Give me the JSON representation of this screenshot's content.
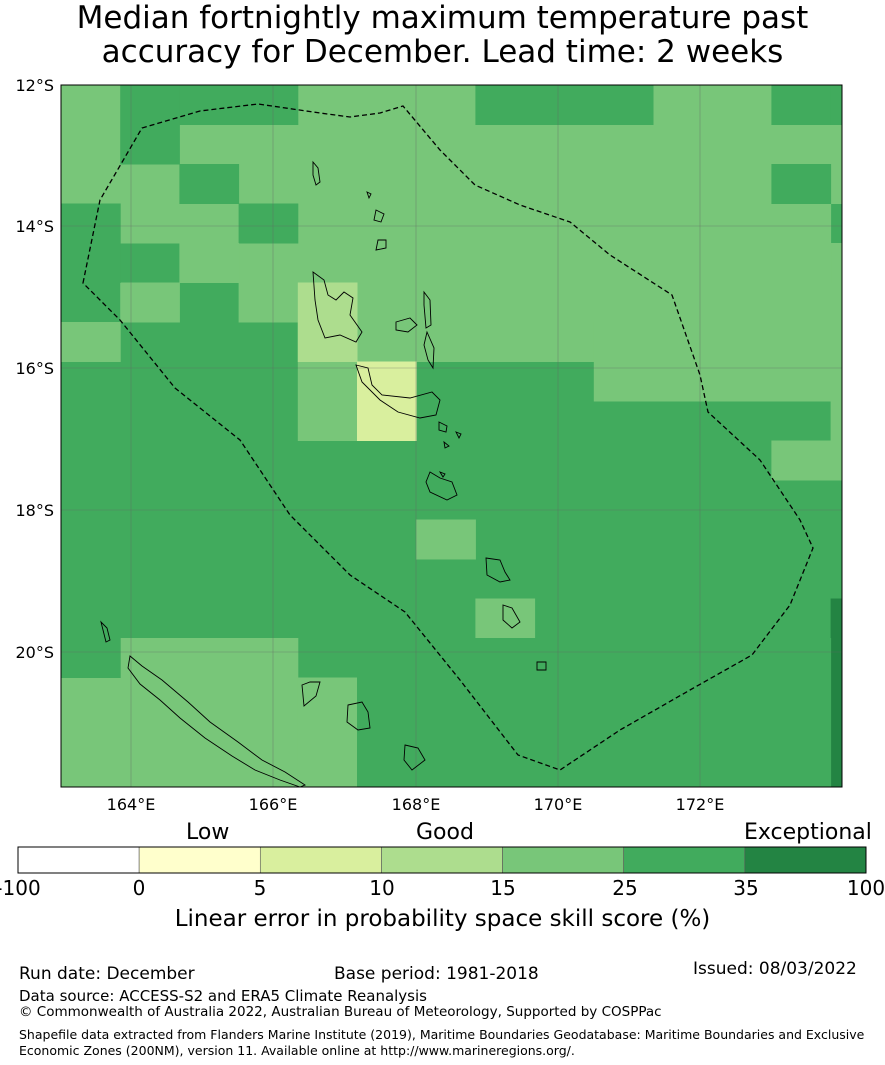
{
  "title_line1": "Median fortnightly maximum temperature past",
  "title_line2": "accuracy for December. Lead time: 2 weeks",
  "map": {
    "lat_labels": [
      "12°S",
      "14°S",
      "16°S",
      "18°S",
      "20°S"
    ],
    "lon_labels": [
      "164°E",
      "166°E",
      "168°E",
      "170°E",
      "172°E"
    ],
    "colors": {
      "c5": "#d9ef9e",
      "c10": "#addd8e",
      "c15": "#78c679",
      "c25": "#41ab5d",
      "c35": "#238443"
    }
  },
  "colorbar": {
    "category_low": "Low",
    "category_good": "Good",
    "category_exceptional": "Exceptional",
    "ticks": [
      "-100",
      "0",
      "5",
      "10",
      "15",
      "25",
      "35",
      "100"
    ],
    "colors": [
      "#ffffff",
      "#ffffcc",
      "#d9ef9e",
      "#addd8e",
      "#78c679",
      "#41ab5d",
      "#238443"
    ],
    "title": "Linear error in probability space skill score (%)"
  },
  "footer": {
    "run_date": "Run date: December",
    "base_period": "Base period: 1981-2018",
    "issued": "Issued: 08/03/2022",
    "data_source": "Data source: ACCESS-S2 and ERA5 Climate Reanalysis",
    "copyright": "© Commonwealth of Australia 2022, Australian Bureau of Meteorology, Supported by COSPPac",
    "shapefile_line1": "Shapefile data extracted from Flanders Marine Institute (2019), Maritime Boundaries Geodatabase: Maritime Boundaries and Exclusive",
    "shapefile_line2": "Economic Zones (200NM), version 11. Available online at http://www.marineregions.org/."
  }
}
